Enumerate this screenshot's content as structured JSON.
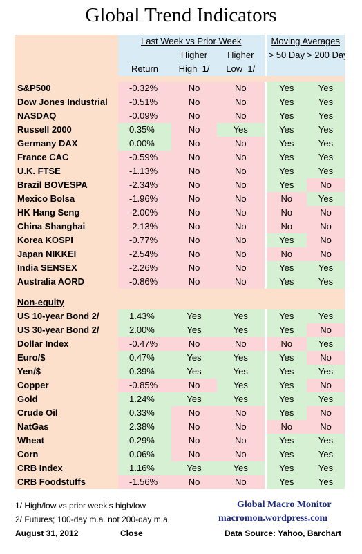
{
  "title": "Global Trend Indicators",
  "header": {
    "group1": "Last Week vs Prior Week",
    "group2": "Moving Averages",
    "higher": "Higher",
    "return": "Return",
    "high": "High",
    "low": "Low",
    "footnote_mark": "1/",
    "ma50": "> 50 Day",
    "ma200": "> 200 Day"
  },
  "equities": [
    {
      "name": "S&P500",
      "ret": "-0.32%",
      "high": "No",
      "low": "No",
      "ma50": "Yes",
      "ma200": "Yes"
    },
    {
      "name": "Dow Jones Industrial",
      "ret": "-0.51%",
      "high": "No",
      "low": "No",
      "ma50": "Yes",
      "ma200": "Yes"
    },
    {
      "name": "NASDAQ",
      "ret": "-0.09%",
      "high": "No",
      "low": "No",
      "ma50": "Yes",
      "ma200": "Yes"
    },
    {
      "name": "Russell 2000",
      "ret": "0.35%",
      "high": "No",
      "low": "Yes",
      "ma50": "Yes",
      "ma200": "Yes"
    },
    {
      "name": "Germany DAX",
      "ret": "0.00%",
      "high": "No",
      "low": "No",
      "ma50": "Yes",
      "ma200": "Yes"
    },
    {
      "name": "France CAC",
      "ret": "-0.59%",
      "high": "No",
      "low": "No",
      "ma50": "Yes",
      "ma200": "Yes"
    },
    {
      "name": "U.K. FTSE",
      "ret": "-1.13%",
      "high": "No",
      "low": "No",
      "ma50": "Yes",
      "ma200": "Yes"
    },
    {
      "name": "Brazil BOVESPA",
      "ret": "-2.34%",
      "high": "No",
      "low": "No",
      "ma50": "Yes",
      "ma200": "No"
    },
    {
      "name": "Mexico Bolsa",
      "ret": "-1.96%",
      "high": "No",
      "low": "No",
      "ma50": "No",
      "ma200": "Yes"
    },
    {
      "name": "HK  Hang Seng",
      "ret": "-2.00%",
      "high": "No",
      "low": "No",
      "ma50": "No",
      "ma200": "No"
    },
    {
      "name": "China Shanghai",
      "ret": "-2.13%",
      "high": "No",
      "low": "No",
      "ma50": "No",
      "ma200": "No"
    },
    {
      "name": "Korea KOSPI",
      "ret": "-0.77%",
      "high": "No",
      "low": "No",
      "ma50": "Yes",
      "ma200": "No"
    },
    {
      "name": "Japan NIKKEI",
      "ret": "-2.54%",
      "high": "No",
      "low": "No",
      "ma50": "No",
      "ma200": "No"
    },
    {
      "name": "India SENSEX",
      "ret": "-2.26%",
      "high": "No",
      "low": "No",
      "ma50": "Yes",
      "ma200": "Yes"
    },
    {
      "name": "Australia AORD",
      "ret": "-0.86%",
      "high": "No",
      "low": "No",
      "ma50": "Yes",
      "ma200": "Yes"
    }
  ],
  "section_label": "Non-equity",
  "nonequity": [
    {
      "name": "US 10-year Bond 2/",
      "ret": "1.43%",
      "high": "Yes",
      "low": "Yes",
      "ma50": "Yes",
      "ma200": "Yes"
    },
    {
      "name": "US 30-year Bond 2/",
      "ret": "2.00%",
      "high": "Yes",
      "low": "Yes",
      "ma50": "Yes",
      "ma200": "No"
    },
    {
      "name": "Dollar Index",
      "ret": "-0.47%",
      "high": "No",
      "low": "No",
      "ma50": "No",
      "ma200": "Yes"
    },
    {
      "name": "Euro/$",
      "ret": "0.47%",
      "high": "Yes",
      "low": "Yes",
      "ma50": "Yes",
      "ma200": "No"
    },
    {
      "name": "Yen/$",
      "ret": "0.39%",
      "high": "Yes",
      "low": "Yes",
      "ma50": "Yes",
      "ma200": "Yes"
    },
    {
      "name": "Copper",
      "ret": "-0.85%",
      "high": "No",
      "low": "Yes",
      "ma50": "Yes",
      "ma200": "No"
    },
    {
      "name": "Gold",
      "ret": "1.24%",
      "high": "Yes",
      "low": "Yes",
      "ma50": "Yes",
      "ma200": "Yes"
    },
    {
      "name": "Crude Oil",
      "ret": "0.33%",
      "high": "No",
      "low": "No",
      "ma50": "Yes",
      "ma200": "No"
    },
    {
      "name": "NatGas",
      "ret": "2.38%",
      "high": "No",
      "low": "No",
      "ma50": "No",
      "ma200": "No"
    },
    {
      "name": "Wheat",
      "ret": "0.29%",
      "high": "No",
      "low": "No",
      "ma50": "Yes",
      "ma200": "Yes"
    },
    {
      "name": "Corn",
      "ret": "0.06%",
      "high": "No",
      "low": "No",
      "ma50": "Yes",
      "ma200": "Yes"
    },
    {
      "name": "CRB Index",
      "ret": "1.16%",
      "high": "Yes",
      "low": "Yes",
      "ma50": "Yes",
      "ma200": "Yes"
    },
    {
      "name": "CRB Foodstuffs",
      "ret": "-1.56%",
      "high": "No",
      "low": "No",
      "ma50": "Yes",
      "ma200": "Yes"
    }
  ],
  "footer": {
    "note1": "1/  High/low vs prior week's high/low",
    "note2": "2/  Futures;  100-day m.a. not 200-day m.a.",
    "date": "August 31, 2012",
    "close": "Close",
    "brand": "Global Macro Monitor",
    "site": "macromon.wordpress.com",
    "source": "Data Source: Yahoo, Barchart"
  },
  "colors": {
    "positive": "#d6f0d3",
    "negative": "#fcd5d9",
    "label": "#fde0cb",
    "header": "#d9ebf4",
    "brand": "#1f2a80"
  }
}
